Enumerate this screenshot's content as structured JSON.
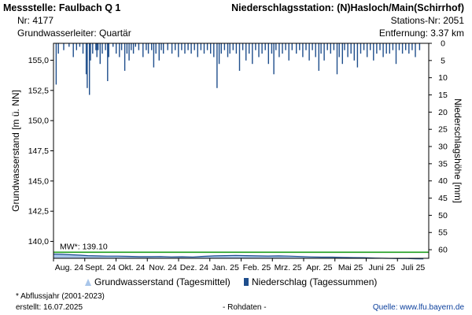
{
  "header": {
    "left": {
      "title": "Messstelle: Faulbach Q 1",
      "number": "Nr: 4177",
      "aquifer": "Grundwasserleiter: Quartär"
    },
    "right": {
      "title": "Niederschlagsstation: (N)Hasloch/Main(Schirrhof)",
      "number": "Stations-Nr: 2051",
      "distance": "Entfernung: 3.37 km"
    }
  },
  "chart_data": {
    "type": "bar+area",
    "ylabel_left": "Grundwasserstand [m ü. NN]",
    "ylabel_right": "Niederschlagshöhe [mm]",
    "left_axis": {
      "min": 138.6,
      "max": 156.4,
      "ticks": [
        "155,0",
        "152,5",
        "150,0",
        "147,5",
        "145,0",
        "142,5",
        "140,0"
      ],
      "tick_values": [
        155.0,
        152.5,
        150.0,
        147.5,
        145.0,
        142.5,
        140.0
      ]
    },
    "right_axis": {
      "min": 0,
      "max": 62.5,
      "ticks": [
        "0",
        "5",
        "10",
        "15",
        "20",
        "25",
        "30",
        "35",
        "40",
        "45",
        "50",
        "55",
        "60"
      ],
      "tick_values": [
        0,
        5,
        10,
        15,
        20,
        25,
        30,
        35,
        40,
        45,
        50,
        55,
        60
      ],
      "inverted": true
    },
    "x_months": [
      "Aug. 24",
      "Sept. 24",
      "Okt. 24",
      "Nov. 24",
      "Dez. 24",
      "Jan. 25",
      "Feb. 25",
      "Mrz. 25",
      "Apr. 25",
      "Mai 25",
      "Juni 25",
      "Juli 25"
    ],
    "mean_line": {
      "label": "MW*: 139.10",
      "value": 139.1,
      "color": "#1e9e1e"
    },
    "groundwater_series": {
      "name": "Grundwasserstand (Tagesmittel)",
      "color": "#a9c6ea",
      "stroke": "#1f4e8c",
      "points": [
        [
          0,
          138.95
        ],
        [
          8,
          138.93
        ],
        [
          15,
          138.9
        ],
        [
          25,
          138.86
        ],
        [
          32,
          138.82
        ],
        [
          40,
          138.8
        ],
        [
          50,
          138.78
        ],
        [
          60,
          138.78
        ],
        [
          70,
          138.76
        ],
        [
          80,
          138.74
        ],
        [
          90,
          138.74
        ],
        [
          100,
          138.75
        ],
        [
          110,
          138.72
        ],
        [
          120,
          138.73
        ],
        [
          130,
          138.71
        ],
        [
          140,
          138.76
        ],
        [
          150,
          138.8
        ],
        [
          160,
          138.82
        ],
        [
          170,
          138.84
        ],
        [
          180,
          138.82
        ],
        [
          190,
          138.8
        ],
        [
          200,
          138.79
        ],
        [
          210,
          138.8
        ],
        [
          220,
          138.78
        ],
        [
          230,
          138.75
        ],
        [
          240,
          138.72
        ],
        [
          250,
          138.7
        ],
        [
          260,
          138.7
        ],
        [
          270,
          138.68
        ],
        [
          280,
          138.66
        ],
        [
          290,
          138.65
        ],
        [
          300,
          138.62
        ],
        [
          310,
          138.6
        ],
        [
          320,
          138.58
        ],
        [
          330,
          138.58
        ],
        [
          338,
          138.56
        ],
        [
          345,
          138.55
        ]
      ]
    },
    "precip_series": {
      "name": "Niederschlag (Tagessummen)",
      "color": "#1f4e8c",
      "bars": [
        [
          2,
          12
        ],
        [
          4,
          3
        ],
        [
          9,
          2
        ],
        [
          14,
          1
        ],
        [
          18,
          4
        ],
        [
          21,
          2
        ],
        [
          24,
          1
        ],
        [
          27,
          3
        ],
        [
          30,
          9
        ],
        [
          31,
          13
        ],
        [
          33,
          15
        ],
        [
          34,
          5
        ],
        [
          36,
          3
        ],
        [
          39,
          2
        ],
        [
          40,
          4
        ],
        [
          41,
          2
        ],
        [
          43,
          6
        ],
        [
          45,
          3
        ],
        [
          48,
          2
        ],
        [
          50,
          11
        ],
        [
          51,
          4
        ],
        [
          55,
          1
        ],
        [
          58,
          3
        ],
        [
          61,
          4
        ],
        [
          63,
          2
        ],
        [
          66,
          8
        ],
        [
          68,
          3
        ],
        [
          70,
          5
        ],
        [
          72,
          2
        ],
        [
          74,
          3
        ],
        [
          76,
          1
        ],
        [
          79,
          2
        ],
        [
          83,
          4
        ],
        [
          86,
          2
        ],
        [
          88,
          3
        ],
        [
          91,
          2
        ],
        [
          93,
          7
        ],
        [
          95,
          3
        ],
        [
          98,
          5
        ],
        [
          100,
          2
        ],
        [
          102,
          3
        ],
        [
          106,
          2
        ],
        [
          110,
          3
        ],
        [
          113,
          2
        ],
        [
          116,
          4
        ],
        [
          119,
          2
        ],
        [
          122,
          3
        ],
        [
          125,
          2
        ],
        [
          128,
          3
        ],
        [
          131,
          2
        ],
        [
          134,
          4
        ],
        [
          137,
          2
        ],
        [
          140,
          3
        ],
        [
          143,
          2
        ],
        [
          146,
          3
        ],
        [
          149,
          4
        ],
        [
          152,
          13
        ],
        [
          154,
          6
        ],
        [
          156,
          3
        ],
        [
          159,
          2
        ],
        [
          162,
          4
        ],
        [
          164,
          3
        ],
        [
          167,
          2
        ],
        [
          170,
          3
        ],
        [
          173,
          8
        ],
        [
          176,
          2
        ],
        [
          179,
          5
        ],
        [
          182,
          3
        ],
        [
          185,
          6
        ],
        [
          188,
          2
        ],
        [
          191,
          4
        ],
        [
          194,
          3
        ],
        [
          197,
          2
        ],
        [
          200,
          6
        ],
        [
          203,
          3
        ],
        [
          205,
          9
        ],
        [
          207,
          2
        ],
        [
          210,
          4
        ],
        [
          213,
          3
        ],
        [
          216,
          2
        ],
        [
          219,
          5
        ],
        [
          222,
          2
        ],
        [
          226,
          3
        ],
        [
          229,
          2
        ],
        [
          232,
          4
        ],
        [
          235,
          2
        ],
        [
          238,
          5
        ],
        [
          241,
          2
        ],
        [
          244,
          4
        ],
        [
          247,
          8
        ],
        [
          249,
          3
        ],
        [
          252,
          5
        ],
        [
          255,
          2
        ],
        [
          258,
          3
        ],
        [
          261,
          2
        ],
        [
          264,
          9
        ],
        [
          266,
          4
        ],
        [
          269,
          6
        ],
        [
          271,
          2
        ],
        [
          274,
          4
        ],
        [
          277,
          3
        ],
        [
          280,
          5
        ],
        [
          283,
          7
        ],
        [
          286,
          3
        ],
        [
          289,
          2
        ],
        [
          292,
          4
        ],
        [
          295,
          2
        ],
        [
          298,
          5
        ],
        [
          301,
          3
        ],
        [
          304,
          2
        ],
        [
          307,
          4
        ],
        [
          310,
          3
        ],
        [
          313,
          3
        ],
        [
          316,
          2
        ],
        [
          319,
          6
        ],
        [
          322,
          2
        ],
        [
          325,
          3
        ],
        [
          328,
          2
        ],
        [
          331,
          3
        ],
        [
          334,
          2
        ],
        [
          337,
          4
        ],
        [
          341,
          2
        ]
      ]
    }
  },
  "legend": {
    "groundwater": "Grundwasserstand (Tagesmittel)",
    "precip": "Niederschlag (Tagessummen)"
  },
  "footer": {
    "note": "* Abflussjahr (2001-2023)",
    "created": "erstellt:  16.07.2025",
    "raw": "- Rohdaten -",
    "source": "Quelle: www.lfu.bayern.de"
  }
}
